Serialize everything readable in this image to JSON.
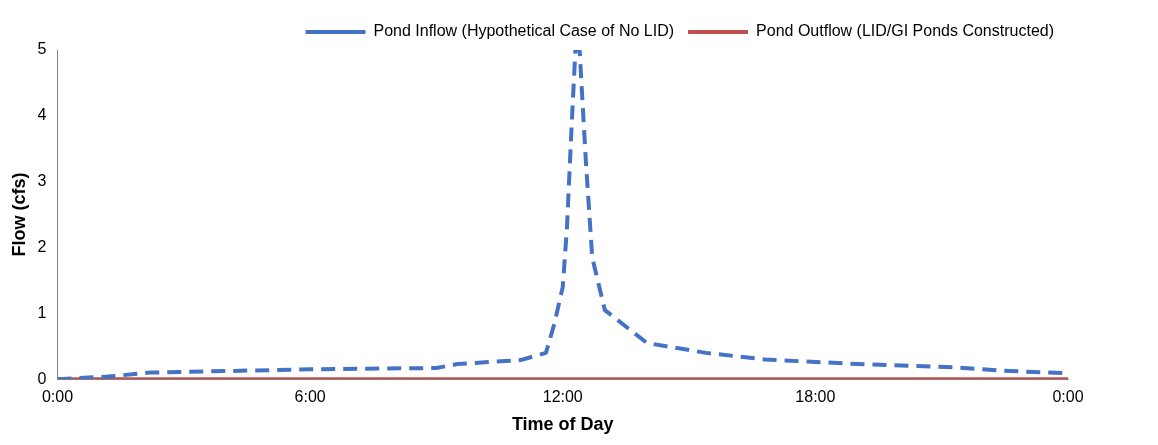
{
  "chart_data": {
    "type": "line",
    "xlabel": "Time of Day",
    "ylabel": "Flow (cfs)",
    "xlim": [
      0,
      24
    ],
    "xticks": [
      {
        "value": 0,
        "label": "0:00"
      },
      {
        "value": 6,
        "label": "6:00"
      },
      {
        "value": 12,
        "label": "12:00"
      },
      {
        "value": 18,
        "label": "18:00"
      },
      {
        "value": 24,
        "label": "0:00"
      }
    ],
    "ylim": [
      0,
      5
    ],
    "yticks": [
      0,
      1,
      2,
      3,
      4,
      5
    ],
    "grid": false,
    "legend": "top right",
    "marker": "none",
    "series": [
      {
        "name": "Pond Inflow (Hypothetical Case of No LID)",
        "color": "#4472c4",
        "line_style": "dashed",
        "x": [
          0,
          1.2,
          2.2,
          6,
          9,
          9.5,
          11,
          11.6,
          11.8,
          12,
          12.1,
          12.2,
          12.3,
          12.4,
          12.55,
          12.7,
          13,
          14,
          15.4,
          16.8,
          19,
          21.3,
          22.4,
          24
        ],
        "values": [
          0,
          0.04,
          0.1,
          0.15,
          0.17,
          0.23,
          0.29,
          0.4,
          0.84,
          1.4,
          2.3,
          3.7,
          5,
          5,
          3.3,
          1.85,
          1.05,
          0.55,
          0.4,
          0.3,
          0.23,
          0.18,
          0.13,
          0.09
        ]
      },
      {
        "name": "Pond Outflow (LID/GI Ponds Constructed)",
        "color": "#c0504d",
        "line_style": "solid",
        "x": [
          0,
          24
        ],
        "values": [
          0,
          0
        ]
      }
    ]
  }
}
